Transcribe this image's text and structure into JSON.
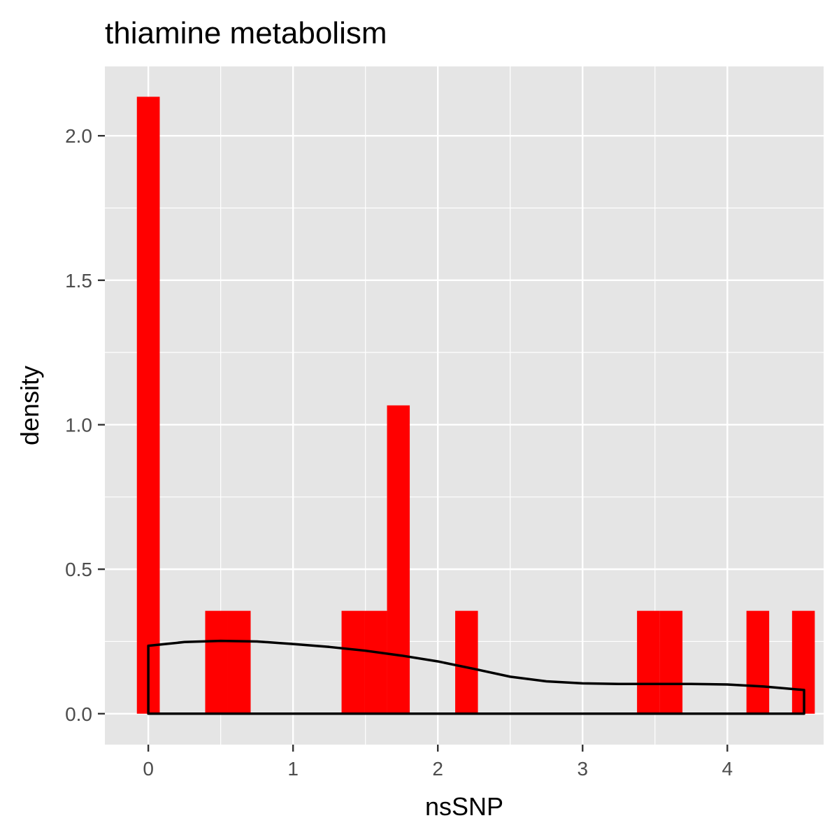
{
  "chart_data": {
    "type": "bar",
    "title": "thiamine metabolism",
    "xlabel": "nsSNP",
    "ylabel": "density",
    "xlim": [
      -0.3,
      4.665
    ],
    "ylim": [
      -0.107,
      2.24
    ],
    "x_ticks": [
      0,
      1,
      2,
      3,
      4
    ],
    "y_ticks": [
      0.0,
      0.5,
      1.0,
      1.5,
      2.0
    ],
    "x_tick_labels": [
      "0",
      "1",
      "2",
      "3",
      "4"
    ],
    "y_tick_labels": [
      "0.0",
      "0.5",
      "1.0",
      "1.5",
      "2.0"
    ],
    "grid": true,
    "legend": "none",
    "histogram": {
      "bin_width": 0.157,
      "bins": [
        {
          "x0": -0.079,
          "x1": 0.079,
          "density": 2.135
        },
        {
          "x0": 0.393,
          "x1": 0.55,
          "density": 0.356
        },
        {
          "x0": 0.55,
          "x1": 0.707,
          "density": 0.356
        },
        {
          "x0": 1.335,
          "x1": 1.492,
          "density": 0.356
        },
        {
          "x0": 1.492,
          "x1": 1.649,
          "density": 0.356
        },
        {
          "x0": 1.649,
          "x1": 1.806,
          "density": 1.067
        },
        {
          "x0": 2.12,
          "x1": 2.277,
          "density": 0.356
        },
        {
          "x0": 3.376,
          "x1": 3.533,
          "density": 0.356
        },
        {
          "x0": 3.533,
          "x1": 3.69,
          "density": 0.356
        },
        {
          "x0": 4.132,
          "x1": 4.289,
          "density": 0.356
        },
        {
          "x0": 4.447,
          "x1": 4.604,
          "density": 0.356
        }
      ],
      "fill_color": "#ff0000"
    },
    "density_curve": {
      "x": [
        0,
        0.25,
        0.5,
        0.75,
        1.0,
        1.25,
        1.5,
        1.75,
        2.0,
        2.25,
        2.5,
        2.75,
        3.0,
        3.25,
        3.5,
        3.75,
        4.0,
        4.25,
        4.53
      ],
      "y": [
        0.235,
        0.248,
        0.252,
        0.25,
        0.241,
        0.231,
        0.218,
        0.201,
        0.181,
        0.155,
        0.128,
        0.112,
        0.105,
        0.103,
        0.103,
        0.103,
        0.101,
        0.094,
        0.082
      ],
      "x_range": [
        0,
        4.53
      ],
      "line_color": "#000000"
    },
    "panel_color": "#e5e5e5",
    "grid_color": "#ffffff"
  }
}
